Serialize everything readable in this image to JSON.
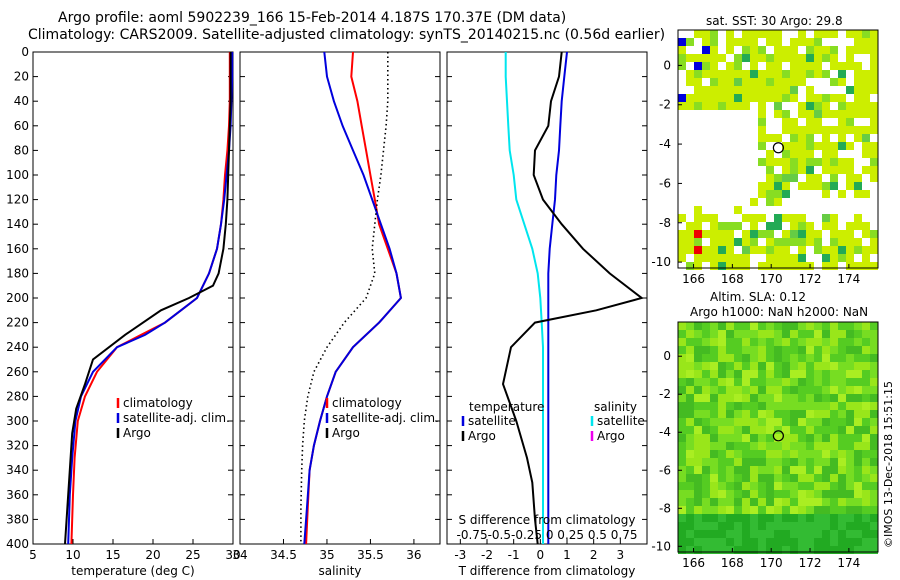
{
  "title_line1": "Argo profile: aoml 5902239_166 15-Feb-2014 4.187S 170.37E (DM data)",
  "title_line2": "Climatology: CARS2009. Satellite-adjusted climatology: synTS_20140215.nc (0.56d earlier)",
  "credit": "©IMOS 13-Dec-2018 15:51:15",
  "colors": {
    "climatology": "#ff0000",
    "satellite": "#0000dd",
    "argo": "#000000",
    "cyan": "#00e5ee",
    "magenta": "#ee00ee"
  },
  "chart_data": [
    {
      "type": "line",
      "xlabel": "temperature (deg C)",
      "xlim": [
        5,
        30
      ],
      "ylim": [
        0,
        400
      ],
      "xticks": [
        "5",
        "10",
        "15",
        "20",
        "25",
        "30"
      ],
      "yticks": [
        "0",
        "20",
        "40",
        "60",
        "80",
        "100",
        "120",
        "140",
        "160",
        "180",
        "200",
        "220",
        "240",
        "260",
        "280",
        "300",
        "320",
        "340",
        "360",
        "380",
        "400"
      ],
      "legend": {
        "climatology": "climatology",
        "satellite": "satellite-adj. clim.",
        "argo": "Argo"
      },
      "series": [
        {
          "name": "climatology",
          "color": "#ff0000",
          "x": [
            29.6,
            29.6,
            29.6,
            29.5,
            29.3,
            29.0,
            28.8,
            28.5,
            28.0,
            27.0,
            25.5,
            23.5,
            21.5,
            18.5,
            15.5,
            13.0,
            11.5,
            10.6,
            10.2,
            10.0,
            9.8
          ],
          "y": [
            0,
            20,
            40,
            60,
            80,
            100,
            120,
            140,
            160,
            180,
            200,
            210,
            220,
            230,
            240,
            260,
            280,
            300,
            330,
            360,
            400
          ]
        },
        {
          "name": "satellite",
          "color": "#0000dd",
          "x": [
            29.9,
            29.9,
            29.8,
            29.7,
            29.5,
            29.2,
            28.9,
            28.5,
            28.0,
            27.0,
            25.5,
            23.5,
            21.5,
            19.0,
            15.5,
            12.5,
            11.0,
            10.3,
            9.9,
            9.6,
            9.4
          ],
          "y": [
            0,
            20,
            40,
            60,
            80,
            100,
            120,
            140,
            160,
            180,
            200,
            210,
            220,
            230,
            240,
            260,
            280,
            300,
            330,
            360,
            400
          ]
        },
        {
          "name": "Argo",
          "color": "#000000",
          "x": [
            29.7,
            29.7,
            29.7,
            29.6,
            29.5,
            29.4,
            29.3,
            29.1,
            28.8,
            28.2,
            27.5,
            24.5,
            21.0,
            16.5,
            12.5,
            11.5,
            10.4,
            9.9,
            9.6,
            9.3,
            9.0
          ],
          "y": [
            0,
            20,
            40,
            60,
            80,
            100,
            120,
            140,
            160,
            180,
            190,
            200,
            210,
            230,
            250,
            270,
            290,
            310,
            340,
            370,
            400
          ]
        }
      ]
    },
    {
      "type": "line",
      "xlabel": "salinity",
      "xlim": [
        34,
        36.3
      ],
      "ylim": [
        0,
        400
      ],
      "xticks": [
        "34",
        "34.5",
        "35",
        "35.5",
        "36"
      ],
      "legend": {
        "climatology": "climatology",
        "satellite": "satellite-adj. clim.",
        "argo": "Argo"
      },
      "series": [
        {
          "name": "climatology",
          "color": "#ff0000",
          "x": [
            35.3,
            35.28,
            35.35,
            35.4,
            35.45,
            35.5,
            35.55,
            35.6,
            35.7,
            35.8,
            35.85,
            35.6,
            35.3,
            35.1,
            35.0,
            34.92,
            34.85,
            34.8,
            34.78,
            34.76
          ],
          "y": [
            0,
            20,
            40,
            60,
            80,
            100,
            120,
            140,
            160,
            180,
            200,
            220,
            240,
            260,
            280,
            300,
            320,
            340,
            370,
            400
          ]
        },
        {
          "name": "satellite",
          "color": "#0000dd",
          "x": [
            34.97,
            35.0,
            35.08,
            35.18,
            35.3,
            35.42,
            35.52,
            35.62,
            35.72,
            35.8,
            35.85,
            35.6,
            35.3,
            35.1,
            35.0,
            34.92,
            34.85,
            34.8,
            34.77,
            34.74
          ],
          "y": [
            0,
            20,
            40,
            60,
            80,
            100,
            120,
            140,
            160,
            180,
            200,
            220,
            240,
            260,
            280,
            300,
            320,
            340,
            370,
            400
          ]
        },
        {
          "name": "Argo",
          "color": "#000000",
          "dashed": true,
          "x": [
            35.7,
            35.7,
            35.7,
            35.68,
            35.65,
            35.62,
            35.58,
            35.55,
            35.52,
            35.55,
            35.45,
            35.2,
            35.0,
            34.85,
            34.78,
            34.74,
            34.72,
            34.71,
            34.7,
            34.7
          ],
          "y": [
            0,
            20,
            40,
            60,
            80,
            100,
            120,
            140,
            160,
            180,
            200,
            220,
            240,
            260,
            280,
            300,
            320,
            340,
            370,
            400
          ]
        }
      ]
    },
    {
      "type": "line",
      "xlabel": "T difference from climatology",
      "top_xlabel": "S difference from climatology",
      "xlim": [
        -3.5,
        4
      ],
      "ylim": [
        0,
        400
      ],
      "xticks": [
        "-3",
        "-2",
        "-1",
        "0",
        "1",
        "2",
        "3"
      ],
      "top_xticks": "-0.75-0.5-0.25 0  0.25 0.5 0.75",
      "legend": {
        "temp_header": "temperature",
        "sal_header": "salinity",
        "satellite": "satellite",
        "argo": "Argo"
      },
      "series": [
        {
          "name": "T satellite",
          "color": "#0000dd",
          "x": [
            1.0,
            0.9,
            0.8,
            0.75,
            0.7,
            0.6,
            0.55,
            0.45,
            0.35,
            0.3,
            0.3,
            0.3,
            0.3,
            0.3,
            0.3,
            0.3,
            0.3,
            0.3,
            0.3,
            0.3
          ],
          "y": [
            0,
            20,
            40,
            60,
            80,
            100,
            120,
            140,
            160,
            180,
            200,
            220,
            240,
            260,
            280,
            300,
            320,
            340,
            370,
            400
          ]
        },
        {
          "name": "S satellite",
          "color": "#00e5ee",
          "x": [
            -1.3,
            -1.3,
            -1.25,
            -1.2,
            -1.15,
            -1.0,
            -0.9,
            -0.6,
            -0.3,
            -0.1,
            0.0,
            0.05,
            0.1,
            0.1,
            0.1,
            0.1,
            0.1,
            0.1,
            0.1,
            0.1
          ],
          "y": [
            0,
            20,
            40,
            60,
            80,
            100,
            120,
            140,
            160,
            180,
            200,
            220,
            240,
            260,
            280,
            300,
            320,
            340,
            370,
            400
          ]
        },
        {
          "name": "T Argo",
          "color": "#000000",
          "x": [
            0.8,
            0.7,
            0.4,
            0.3,
            -0.2,
            -0.25,
            0.1,
            0.8,
            1.6,
            2.6,
            3.8,
            2.1,
            -0.2,
            -1.1,
            -1.4,
            -0.9,
            -0.5,
            -0.3,
            -0.2,
            -0.1
          ],
          "y": [
            0,
            20,
            40,
            60,
            80,
            100,
            120,
            140,
            160,
            180,
            200,
            210,
            220,
            240,
            270,
            300,
            330,
            350,
            380,
            400
          ]
        }
      ]
    },
    {
      "type": "heatmap",
      "title": "sat. SST: 30 Argo: 29.8",
      "xticks": [
        "166",
        "168",
        "170",
        "172",
        "174"
      ],
      "yticks": [
        "0",
        "-2",
        "-4",
        "-6",
        "-8",
        "-10"
      ],
      "xlim": [
        165.2,
        175.5
      ],
      "ylim": [
        -10.3,
        1.8
      ],
      "argo_position": [
        170.37,
        -4.187
      ]
    },
    {
      "type": "heatmap",
      "title_line1": "Altim. SLA: 0.12",
      "title_line2": "Argo h1000: NaN h2000: NaN",
      "xticks": [
        "166",
        "168",
        "170",
        "172",
        "174"
      ],
      "yticks": [
        "0",
        "-2",
        "-4",
        "-6",
        "-8",
        "-10"
      ],
      "xlim": [
        165.2,
        175.5
      ],
      "ylim": [
        -10.3,
        1.8
      ],
      "argo_position": [
        170.37,
        -4.187
      ]
    }
  ]
}
